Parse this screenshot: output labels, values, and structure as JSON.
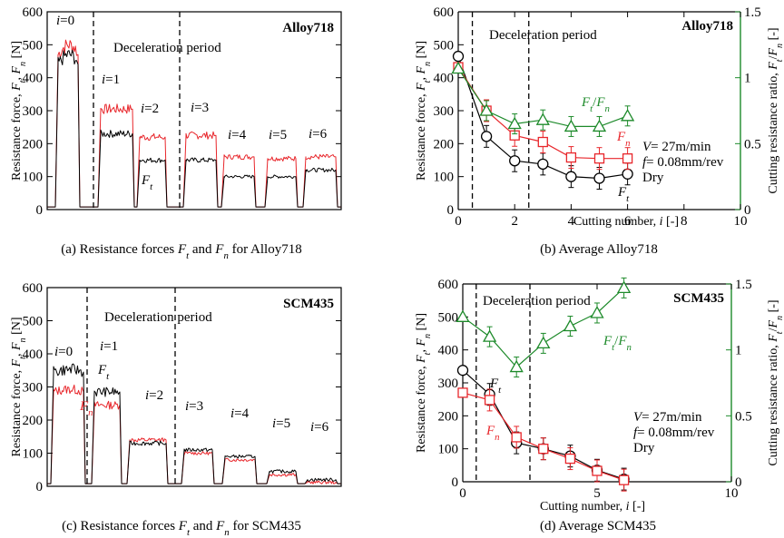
{
  "chart_data": [
    {
      "id": "a",
      "type": "line",
      "caption": "(a) Resistance forces F_t and F_n for Alloy718",
      "caption_parts": [
        "(a) Resistance forces ",
        "F",
        "t",
        " and ",
        "F",
        "n",
        " for Alloy718"
      ],
      "material": "Alloy718",
      "ylabel": "Resistance force, F_t, F_n [N]",
      "ylabel_parts": [
        "Resistance force, ",
        "F",
        "t",
        ", ",
        "F",
        "n",
        " [N]"
      ],
      "ylim": [
        0,
        600
      ],
      "yticks": [
        "0",
        "100",
        "200",
        "300",
        "400",
        "500",
        "600"
      ],
      "annotation": "Deceleration period",
      "ft_label": "F_t",
      "ft_parts": [
        "F",
        "t"
      ],
      "segment_labels": [
        "i=0",
        "i=1",
        "i=2",
        "i=3",
        "i=4",
        "i=5",
        "i=6"
      ],
      "series": [
        {
          "name": "Ft",
          "color": "#000000",
          "levels": [
            440,
            230,
            150,
            150,
            100,
            100,
            120
          ]
        },
        {
          "name": "Fn",
          "color": "#e8262b",
          "levels": [
            470,
            305,
            220,
            225,
            160,
            155,
            160
          ]
        }
      ]
    },
    {
      "id": "b",
      "type": "line",
      "caption": "(b) Average Alloy718",
      "material": "Alloy718",
      "xlabel": "Cutting number, i [-]",
      "xlabel_parts": [
        "Cutting number, ",
        "i",
        " [-]"
      ],
      "ylabel": "Resistance force, F_t, F_n [N]",
      "ylabel_parts": [
        "Resistance force, ",
        "F",
        "t",
        ", ",
        "F",
        "n",
        " [N]"
      ],
      "y2label": "Cutting resistance ratio, F_t/F_n [-]",
      "y2label_parts": [
        "Cutting resistance ratio, ",
        "F",
        "t",
        "/",
        "F",
        "n",
        " [-]"
      ],
      "xlim": [
        0,
        10
      ],
      "ylim": [
        0,
        600
      ],
      "y2lim": [
        0,
        1.5
      ],
      "xticks": [
        "0",
        "2",
        "4",
        "6",
        "8",
        "10"
      ],
      "yticks": [
        "0",
        "100",
        "200",
        "300",
        "400",
        "500",
        "600"
      ],
      "y2ticks": [
        "0",
        "0.5",
        "1",
        "1.5"
      ],
      "annotation": "Deceleration period",
      "conditions": [
        "V= 27m/min",
        "f= 0.08mm/rev",
        "Dry"
      ],
      "cond_parts": [
        [
          "V",
          "= 27m/min"
        ],
        [
          "f",
          "= 0.08mm/rev"
        ],
        [
          "",
          "Dry"
        ]
      ],
      "x": [
        0,
        1,
        2,
        3,
        4,
        5,
        6
      ],
      "series": [
        {
          "name": "Ft",
          "label": "F_t",
          "label_parts": [
            "F",
            "t"
          ],
          "color": "#000000",
          "marker": "circle",
          "axis": "left",
          "values": [
            465,
            222,
            148,
            138,
            100,
            95,
            108
          ]
        },
        {
          "name": "Fn",
          "label": "F_n",
          "label_parts": [
            "F",
            "n"
          ],
          "color": "#e8262b",
          "marker": "square",
          "axis": "left",
          "values": [
            432,
            300,
            225,
            205,
            158,
            155,
            155
          ]
        },
        {
          "name": "Ft/Fn",
          "label": "F_t/F_n",
          "label_parts": [
            "F",
            "t",
            "/",
            "F",
            "n"
          ],
          "color": "#1d8a2a",
          "marker": "triangle",
          "axis": "right",
          "values": [
            1.07,
            0.75,
            0.65,
            0.68,
            0.63,
            0.63,
            0.71
          ]
        }
      ]
    },
    {
      "id": "c",
      "type": "line",
      "caption": "(c) Resistance forces F_t and F_n for SCM435",
      "caption_parts": [
        "(c) Resistance forces ",
        "F",
        "t",
        " and ",
        "F",
        "n",
        " for SCM435"
      ],
      "material": "SCM435",
      "ylabel": "Resistance force, F_t, F_n [N]",
      "ylabel_parts": [
        "Resistance force, ",
        "F",
        "t",
        ", ",
        "F",
        "n",
        " [N]"
      ],
      "ylim": [
        0,
        600
      ],
      "yticks": [
        "0",
        "100",
        "200",
        "300",
        "400",
        "500",
        "600"
      ],
      "annotation": "Deceleration period",
      "ft_label": "F_t",
      "ft_parts": [
        "F",
        "t"
      ],
      "fn_label": "F_n",
      "fn_parts": [
        "F",
        "n"
      ],
      "segment_labels": [
        "i=0",
        "i=1",
        "i=2",
        "i=3",
        "i=4",
        "i=5",
        "i=6"
      ],
      "series": [
        {
          "name": "Ft",
          "color": "#000000",
          "levels": [
            345,
            285,
            130,
            110,
            90,
            45,
            20
          ]
        },
        {
          "name": "Fn",
          "color": "#e8262b",
          "levels": [
            285,
            245,
            140,
            100,
            80,
            35,
            12
          ]
        }
      ]
    },
    {
      "id": "d",
      "type": "line",
      "caption": "(d) Average SCM435",
      "material": "SCM435",
      "xlabel": "Cutting number, i [-]",
      "xlabel_parts": [
        "Cutting number, ",
        "i",
        " [-]"
      ],
      "ylabel": "Resistance force, F_t, F_n [N]",
      "ylabel_parts": [
        "Resistance force, ",
        "F",
        "t",
        ", ",
        "F",
        "n",
        " [N]"
      ],
      "y2label": "Cutting resistance ratio, F_t/F_n [-]",
      "y2label_parts": [
        "Cutting resistance ratio, ",
        "F",
        "t",
        "/",
        "F",
        "n",
        " [-]"
      ],
      "xlim": [
        0,
        10
      ],
      "ylim": [
        0,
        600
      ],
      "y2lim": [
        0,
        1.5
      ],
      "xticks": [
        "0",
        "5",
        "10"
      ],
      "yticks": [
        "0",
        "100",
        "200",
        "300",
        "400",
        "500",
        "600"
      ],
      "y2ticks": [
        "0",
        "0.5",
        "1",
        "1.5"
      ],
      "annotation": "Deceleration period",
      "conditions": [
        "V= 27m/min",
        "f= 0.08mm/rev",
        "Dry"
      ],
      "cond_parts": [
        [
          "V",
          "= 27m/min"
        ],
        [
          "f",
          "= 0.08mm/rev"
        ],
        [
          "",
          "Dry"
        ]
      ],
      "x": [
        0,
        1,
        2,
        3,
        4,
        5,
        6
      ],
      "series": [
        {
          "name": "Ft",
          "label": "F_t",
          "label_parts": [
            "F",
            "t"
          ],
          "color": "#000000",
          "marker": "circle",
          "axis": "left",
          "values": [
            338,
            265,
            118,
            100,
            78,
            35,
            8
          ]
        },
        {
          "name": "Fn",
          "label": "F_n",
          "label_parts": [
            "F",
            "n"
          ],
          "color": "#e8262b",
          "marker": "square",
          "axis": "left",
          "values": [
            270,
            248,
            135,
            100,
            70,
            33,
            5
          ]
        },
        {
          "name": "Ft/Fn",
          "label": "F_t/F_n",
          "label_parts": [
            "F",
            "t",
            "/",
            "F",
            "n"
          ],
          "color": "#1d8a2a",
          "marker": "triangle",
          "axis": "right",
          "values": [
            1.25,
            1.1,
            0.87,
            1.05,
            1.18,
            1.28,
            1.47
          ]
        }
      ]
    }
  ]
}
